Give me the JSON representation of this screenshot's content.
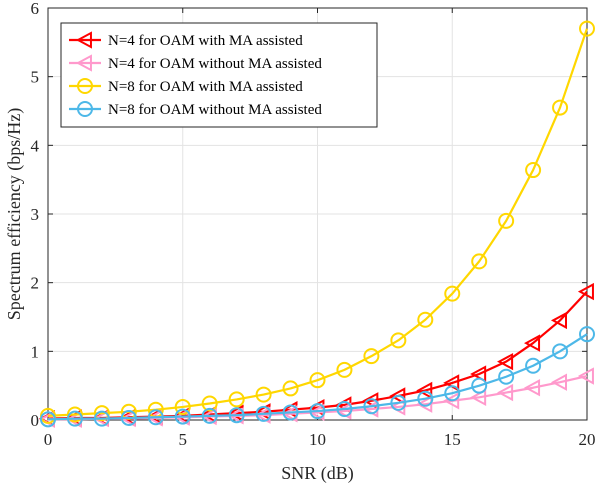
{
  "chart_data": {
    "type": "line",
    "xlabel": "SNR (dB)",
    "ylabel": "Spectrum efficiency (bps/Hz)",
    "xlim": [
      0,
      20
    ],
    "ylim": [
      0,
      6
    ],
    "xticks": [
      0,
      5,
      10,
      15,
      20
    ],
    "yticks": [
      0,
      1,
      2,
      3,
      4,
      5,
      6
    ],
    "grid": true,
    "legend_position": "top-left",
    "x": [
      0,
      1,
      2,
      3,
      4,
      5,
      6,
      7,
      8,
      9,
      10,
      11,
      12,
      13,
      14,
      15,
      16,
      17,
      18,
      19,
      20
    ],
    "series": [
      {
        "name": "N=4 for OAM with MA assisted",
        "color": "#ff0000",
        "marker": "triangle-left",
        "values": [
          0.02,
          0.03,
          0.03,
          0.04,
          0.05,
          0.06,
          0.08,
          0.1,
          0.12,
          0.15,
          0.18,
          0.22,
          0.28,
          0.35,
          0.43,
          0.54,
          0.67,
          0.85,
          1.12,
          1.45,
          1.87
        ]
      },
      {
        "name": "N=4 for OAM without MA assisted",
        "color": "#ff99cc",
        "marker": "triangle-left",
        "values": [
          0.01,
          0.01,
          0.02,
          0.02,
          0.03,
          0.04,
          0.05,
          0.06,
          0.07,
          0.09,
          0.11,
          0.13,
          0.16,
          0.19,
          0.23,
          0.28,
          0.33,
          0.4,
          0.47,
          0.55,
          0.64
        ]
      },
      {
        "name": "N=8 for OAM with MA assisted",
        "color": "#ffd700",
        "marker": "circle",
        "values": [
          0.06,
          0.08,
          0.1,
          0.12,
          0.15,
          0.19,
          0.24,
          0.3,
          0.37,
          0.46,
          0.58,
          0.73,
          0.93,
          1.16,
          1.46,
          1.84,
          2.31,
          2.9,
          3.64,
          4.55,
          5.7
        ]
      },
      {
        "name": "N=8 for OAM without MA assisted",
        "color": "#4db8e8",
        "marker": "circle",
        "values": [
          0.01,
          0.02,
          0.02,
          0.03,
          0.04,
          0.05,
          0.06,
          0.07,
          0.09,
          0.11,
          0.13,
          0.16,
          0.2,
          0.25,
          0.31,
          0.39,
          0.5,
          0.63,
          0.79,
          1.0,
          1.25
        ]
      }
    ]
  }
}
